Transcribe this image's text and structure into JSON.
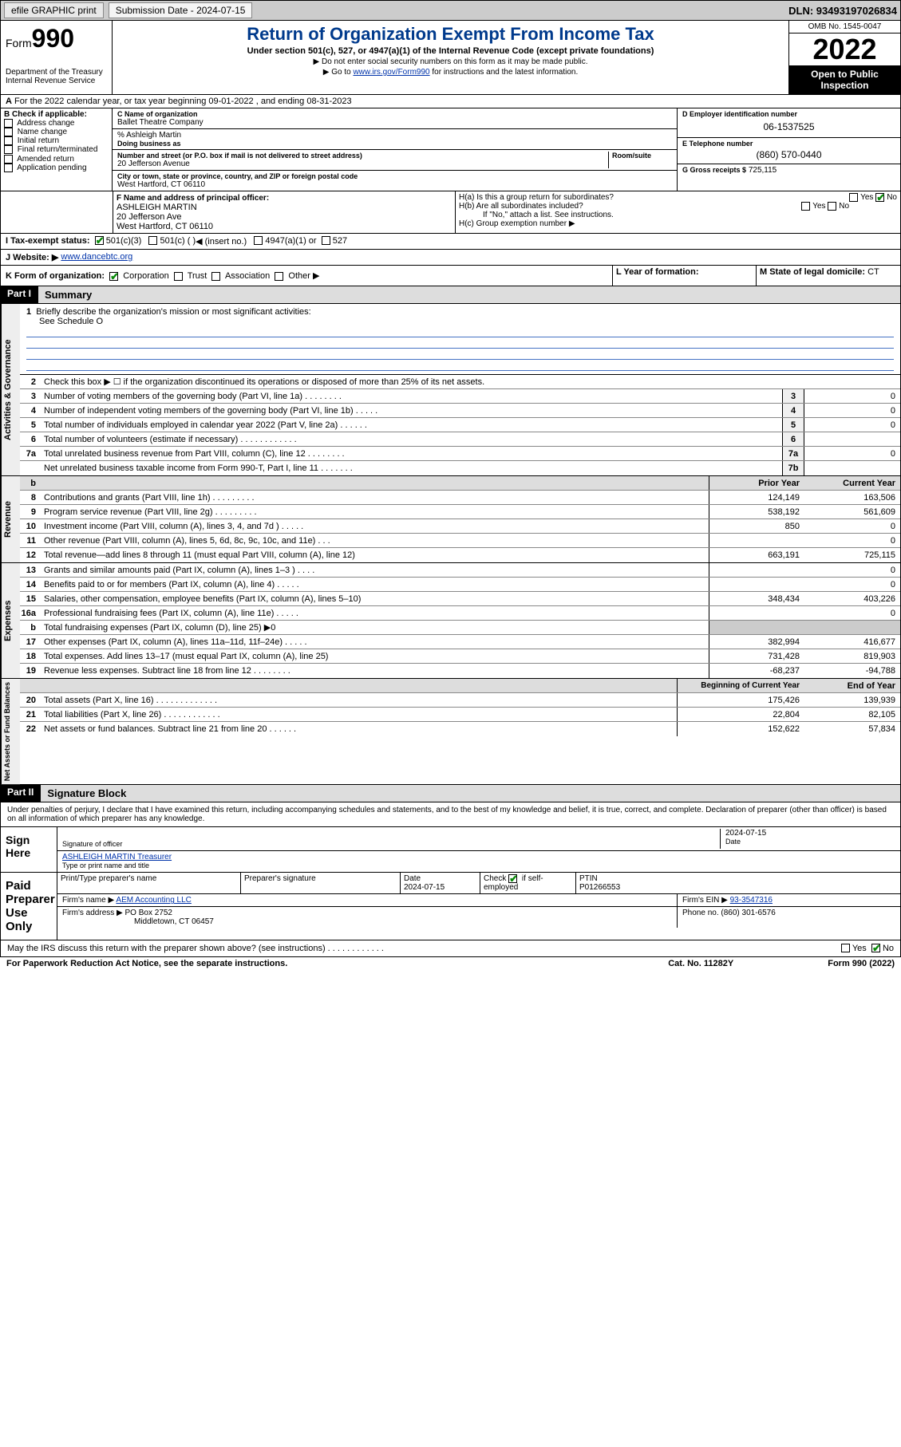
{
  "topbar": {
    "efile": "efile GRAPHIC print",
    "sub_label": "Submission Date - 2024-07-15",
    "dln": "DLN: 93493197026834"
  },
  "header": {
    "form_word": "Form",
    "form_num": "990",
    "dept": "Department of the Treasury",
    "irs": "Internal Revenue Service",
    "title": "Return of Organization Exempt From Income Tax",
    "sub1": "Under section 501(c), 527, or 4947(a)(1) of the Internal Revenue Code (except private foundations)",
    "sub2": "▶ Do not enter social security numbers on this form as it may be made public.",
    "sub3_pre": "▶ Go to ",
    "sub3_link": "www.irs.gov/Form990",
    "sub3_post": " for instructions and the latest information.",
    "omb": "OMB No. 1545-0047",
    "year": "2022",
    "open": "Open to Public Inspection"
  },
  "line_a": "For the 2022 calendar year, or tax year beginning 09-01-2022   , and ending 08-31-2023",
  "box_b": {
    "title": "B Check if applicable:",
    "opts": [
      "Address change",
      "Name change",
      "Initial return",
      "Final return/terminated",
      "Amended return",
      "Application pending"
    ]
  },
  "box_c": {
    "label_name": "C Name of organization",
    "name": "Ballet Theatre Company",
    "care_of": "% Ashleigh Martin",
    "dba_label": "Doing business as",
    "addr_label": "Number and street (or P.O. box if mail is not delivered to street address)",
    "room_label": "Room/suite",
    "addr": "20 Jefferson Avenue",
    "city_label": "City or town, state or province, country, and ZIP or foreign postal code",
    "city": "West Hartford, CT  06110"
  },
  "box_d": {
    "label": "D Employer identification number",
    "val": "06-1537525"
  },
  "box_e": {
    "label": "E Telephone number",
    "val": "(860) 570-0440"
  },
  "box_g": {
    "label": "G Gross receipts $",
    "val": "725,115"
  },
  "box_f": {
    "label": "F Name and address of principal officer:",
    "name": "ASHLEIGH MARTIN",
    "addr1": "20 Jefferson Ave",
    "addr2": "West Hartford, CT  06110"
  },
  "box_h": {
    "ha": "H(a)  Is this a group return for subordinates?",
    "hb": "H(b)  Are all subordinates included?",
    "hb_note": "If \"No,\" attach a list. See instructions.",
    "hc": "H(c)  Group exemption number ▶",
    "yes": "Yes",
    "no": "No"
  },
  "line_i": {
    "label": "I    Tax-exempt status:",
    "c3": "501(c)(3)",
    "c": "501(c) ( )",
    "ins": "◀ (insert no.)",
    "a1": "4947(a)(1) or",
    "l527": "527"
  },
  "line_j": {
    "label": "J    Website: ▶",
    "val": "www.dancebtc.org"
  },
  "line_k": {
    "label": "K Form of organization:",
    "corp": "Corporation",
    "trust": "Trust",
    "assoc": "Association",
    "other": "Other ▶"
  },
  "line_l": {
    "label": "L Year of formation:",
    "val": ""
  },
  "line_m": {
    "label": "M State of legal domicile:",
    "val": "CT"
  },
  "part1": {
    "header": "Part I",
    "title": "Summary",
    "l1": "Briefly describe the organization's mission or most significant activities:",
    "l1v": "See Schedule O",
    "l2": "Check this box ▶ ☐  if the organization discontinued its operations or disposed of more than 25% of its net assets.",
    "rows_gov": [
      {
        "n": "3",
        "d": "Number of voting members of the governing body (Part VI, line 1a)   .   .   .   .   .   .   .   .",
        "b": "3",
        "v": "0"
      },
      {
        "n": "4",
        "d": "Number of independent voting members of the governing body (Part VI, line 1b)   .   .   .   .   .",
        "b": "4",
        "v": "0"
      },
      {
        "n": "5",
        "d": "Total number of individuals employed in calendar year 2022 (Part V, line 2a)   .   .   .   .   .   .",
        "b": "5",
        "v": "0"
      },
      {
        "n": "6",
        "d": "Total number of volunteers (estimate if necessary)   .   .   .   .   .   .   .   .   .   .   .   .",
        "b": "6",
        "v": ""
      },
      {
        "n": "7a",
        "d": "Total unrelated business revenue from Part VIII, column (C), line 12   .   .   .   .   .   .   .   .",
        "b": "7a",
        "v": "0"
      },
      {
        "n": "",
        "d": "Net unrelated business taxable income from Form 990-T, Part I, line 11   .   .   .   .   .   .   .",
        "b": "7b",
        "v": ""
      }
    ],
    "hdrs": {
      "b": "b",
      "py": "Prior Year",
      "cy": "Current Year"
    },
    "rows_rev": [
      {
        "n": "8",
        "d": "Contributions and grants (Part VIII, line 1h)   .   .   .   .   .   .   .   .   .",
        "py": "124,149",
        "cy": "163,506"
      },
      {
        "n": "9",
        "d": "Program service revenue (Part VIII, line 2g)   .   .   .   .   .   .   .   .   .",
        "py": "538,192",
        "cy": "561,609"
      },
      {
        "n": "10",
        "d": "Investment income (Part VIII, column (A), lines 3, 4, and 7d )   .   .   .   .   .",
        "py": "850",
        "cy": "0"
      },
      {
        "n": "11",
        "d": "Other revenue (Part VIII, column (A), lines 5, 6d, 8c, 9c, 10c, and 11e)   .   .   .",
        "py": "",
        "cy": "0"
      },
      {
        "n": "12",
        "d": "Total revenue—add lines 8 through 11 (must equal Part VIII, column (A), line 12)",
        "py": "663,191",
        "cy": "725,115"
      }
    ],
    "rows_exp": [
      {
        "n": "13",
        "d": "Grants and similar amounts paid (Part IX, column (A), lines 1–3 )   .   .   .   .",
        "py": "",
        "cy": "0"
      },
      {
        "n": "14",
        "d": "Benefits paid to or for members (Part IX, column (A), line 4)   .   .   .   .   .",
        "py": "",
        "cy": "0"
      },
      {
        "n": "15",
        "d": "Salaries, other compensation, employee benefits (Part IX, column (A), lines 5–10)",
        "py": "348,434",
        "cy": "403,226"
      },
      {
        "n": "16a",
        "d": "Professional fundraising fees (Part IX, column (A), line 11e)   .   .   .   .   .",
        "py": "",
        "cy": "0"
      },
      {
        "n": "b",
        "d": "Total fundraising expenses (Part IX, column (D), line 25) ▶0",
        "py": "",
        "cy": "",
        "shaded": true
      },
      {
        "n": "17",
        "d": "Other expenses (Part IX, column (A), lines 11a–11d, 11f–24e)   .   .   .   .   .",
        "py": "382,994",
        "cy": "416,677"
      },
      {
        "n": "18",
        "d": "Total expenses. Add lines 13–17 (must equal Part IX, column (A), line 25)",
        "py": "731,428",
        "cy": "819,903"
      },
      {
        "n": "19",
        "d": "Revenue less expenses. Subtract line 18 from line 12  .   .   .   .   .   .   .   .",
        "py": "-68,237",
        "cy": "-94,788"
      }
    ],
    "hdrs2": {
      "py": "Beginning of Current Year",
      "cy": "End of Year"
    },
    "rows_net": [
      {
        "n": "20",
        "d": "Total assets (Part X, line 16)   .   .   .   .   .   .   .   .   .   .   .   .   .",
        "py": "175,426",
        "cy": "139,939"
      },
      {
        "n": "21",
        "d": "Total liabilities (Part X, line 26)   .   .   .   .   .   .   .   .   .   .   .   .",
        "py": "22,804",
        "cy": "82,105"
      },
      {
        "n": "22",
        "d": "Net assets or fund balances. Subtract line 21 from line 20   .   .   .   .   .   .",
        "py": "152,622",
        "cy": "57,834"
      }
    ],
    "vlabels": {
      "gov": "Activities & Governance",
      "rev": "Revenue",
      "exp": "Expenses",
      "net": "Net Assets or Fund Balances"
    }
  },
  "part2": {
    "header": "Part II",
    "title": "Signature Block",
    "decl": "Under penalties of perjury, I declare that I have examined this return, including accompanying schedules and statements, and to the best of my knowledge and belief, it is true, correct, and complete. Declaration of preparer (other than officer) is based on all information of which preparer has any knowledge.",
    "sign_here": "Sign Here",
    "sig_officer": "Signature of officer",
    "sig_date": "Date",
    "sig_date_v": "2024-07-15",
    "officer_name": "ASHLEIGH MARTIN  Treasurer",
    "type_name": "Type or print name and title",
    "paid": "Paid Preparer Use Only",
    "pt_name": "Print/Type preparer's name",
    "pp_sig": "Preparer's signature",
    "pp_date": "Date",
    "pp_date_v": "2024-07-15",
    "check_self": "Check",
    "self": "if self-employed",
    "ptin": "PTIN",
    "ptin_v": "P01266553",
    "firm_name_l": "Firm's name    ▶",
    "firm_name": "AEM Accounting LLC",
    "firm_ein_l": "Firm's EIN ▶",
    "firm_ein": "93-3547316",
    "firm_addr_l": "Firm's address ▶",
    "firm_addr": "PO Box 2752",
    "firm_city": "Middletown, CT  06457",
    "phone_l": "Phone no.",
    "phone": "(860) 301-6576",
    "discuss": "May the IRS discuss this return with the preparer shown above? (see instructions)   .   .   .   .   .   .   .   .   .   .   .   .",
    "pra": "For Paperwork Reduction Act Notice, see the separate instructions.",
    "cat": "Cat. No. 11282Y",
    "formno": "Form 990 (2022)"
  }
}
